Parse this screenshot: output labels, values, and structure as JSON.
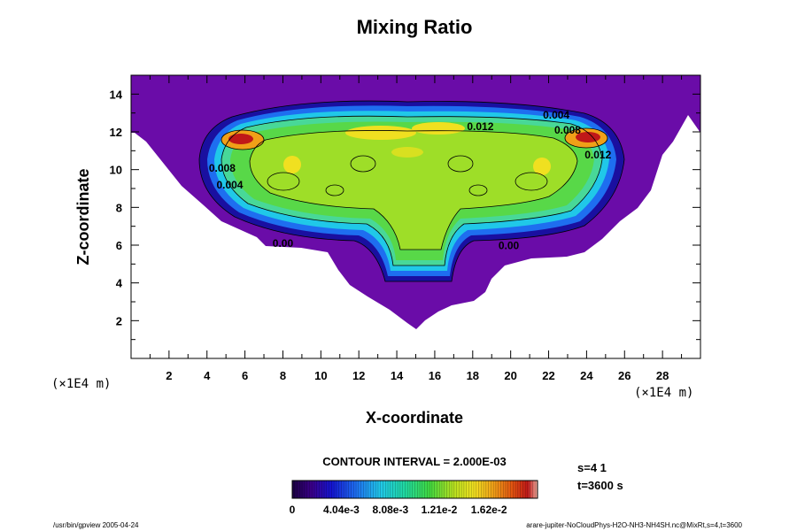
{
  "chart_data": {
    "type": "heatmap",
    "title": "Mixing Ratio",
    "xlabel": "X-coordinate",
    "ylabel": "Z-coordinate",
    "x_unit": "(×1E4 m)",
    "y_unit": "(×1E4 m)",
    "xlim": [
      0,
      30
    ],
    "ylim": [
      0,
      15
    ],
    "x_ticks": [
      2,
      4,
      6,
      8,
      10,
      12,
      14,
      16,
      18,
      20,
      22,
      24,
      26,
      28
    ],
    "y_ticks": [
      2,
      4,
      6,
      8,
      10,
      12,
      14
    ],
    "contour_interval_label": "CONTOUR INTERVAL = 2.000E-03",
    "contour_labels": [
      {
        "text": "0.012",
        "x": 18.4,
        "y": 12.1
      },
      {
        "text": "0.004",
        "x": 22.4,
        "y": 12.7
      },
      {
        "text": "0.008",
        "x": 23.0,
        "y": 11.9
      },
      {
        "text": "0.012",
        "x": 24.6,
        "y": 10.6
      },
      {
        "text": "0.008",
        "x": 4.8,
        "y": 9.9
      },
      {
        "text": "0.004",
        "x": 5.2,
        "y": 9.0
      },
      {
        "text": "0.00",
        "x": 8.0,
        "y": 5.9
      },
      {
        "text": "0.00",
        "x": 19.9,
        "y": 5.8
      }
    ],
    "colorbar": {
      "min": 0,
      "max": 0.0202,
      "tick_labels": [
        "0",
        "4.04e-3",
        "8.08e-3",
        "1.21e-2",
        "1.62e-2"
      ]
    },
    "grid": false
  },
  "annotations": {
    "slice": "s=4 1",
    "time": "t=3600 s",
    "footer_left": "/usr/bin/gpview 2005-04-24",
    "footer_right": "arare-jupiter-NoCloudPhys-H2O-NH3-NH4SH.nc@MixRt,s=4,t=3600"
  }
}
